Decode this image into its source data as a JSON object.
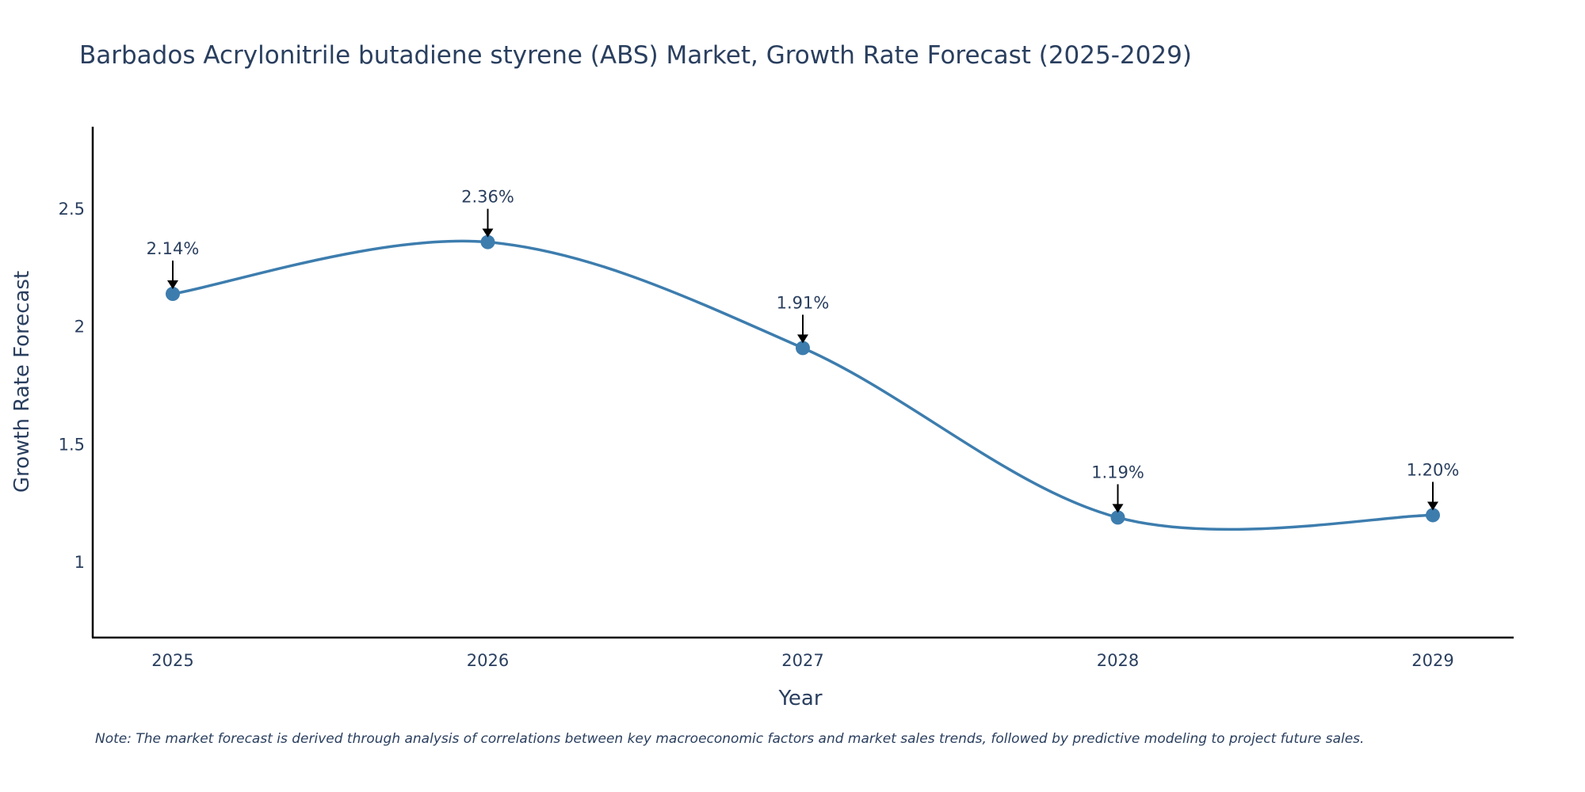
{
  "chart_data": {
    "type": "line",
    "title": "Barbados Acrylonitrile butadiene styrene (ABS) Market, Growth Rate Forecast (2025-2029)",
    "xlabel": "Year",
    "ylabel": "Growth Rate Forecast",
    "x": [
      "2025",
      "2026",
      "2027",
      "2028",
      "2029"
    ],
    "series": [
      {
        "name": "Growth Rate Forecast",
        "values": [
          2.14,
          2.36,
          1.91,
          1.19,
          1.2
        ],
        "labels": [
          "2.14%",
          "2.36%",
          "1.91%",
          "1.19%",
          "1.20%"
        ],
        "color": "#3d7dae"
      }
    ],
    "ylim": [
      0.68,
      2.85
    ],
    "yticks": [
      1,
      1.5,
      2,
      2.5
    ],
    "ytick_labels": [
      "1",
      "1.5",
      "2",
      "2.5"
    ],
    "grid": false,
    "line_shape": "spline",
    "note": "Note: The market forecast is derived through analysis of correlations between key macroeconomic factors and market sales trends, followed by predictive modeling to project future sales."
  },
  "colors": {
    "line": "#3d7dae",
    "text": "#2a3f5f",
    "axis": "#000000",
    "arrow": "#000000"
  }
}
